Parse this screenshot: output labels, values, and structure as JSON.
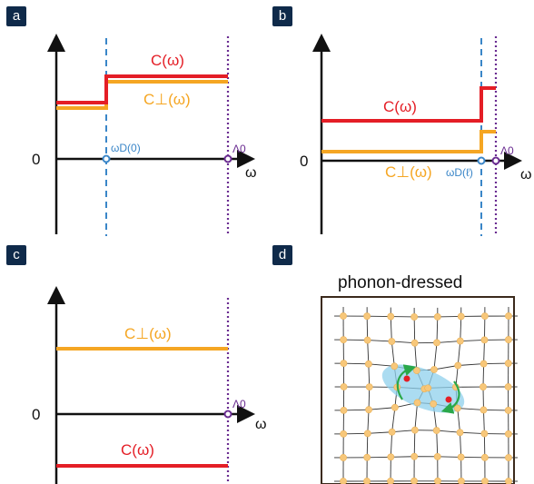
{
  "panels": {
    "a": {
      "tag": "a",
      "zero": "0",
      "omega": "ω",
      "c_label": "C(ω)",
      "cperp_label": "C⊥(ω)",
      "omega_d_label": "ωD(0)",
      "lambda_label": "Λ0"
    },
    "b": {
      "tag": "b",
      "zero": "0",
      "omega": "ω",
      "c_label": "C(ω)",
      "cperp_label": "C⊥(ω)",
      "omega_d_label": "ωD(ℓ)",
      "lambda_label": "Λ0"
    },
    "c": {
      "tag": "c",
      "zero": "0",
      "omega": "ω",
      "c_label": "C(ω)",
      "cperp_label": "C⊥(ω)",
      "lambda_label": "Λ0"
    },
    "d": {
      "tag": "d",
      "title": "phonon-dressed"
    }
  },
  "colors": {
    "c_line": "#e41e26",
    "cperp_line": "#f5a623",
    "omega_d": "#3a86c8",
    "lambda": "#6a2c91",
    "axis": "#111111",
    "lattice_node": "#f7c77a",
    "polaron": "#8fd0ec",
    "arrow": "#2aa84a"
  }
}
